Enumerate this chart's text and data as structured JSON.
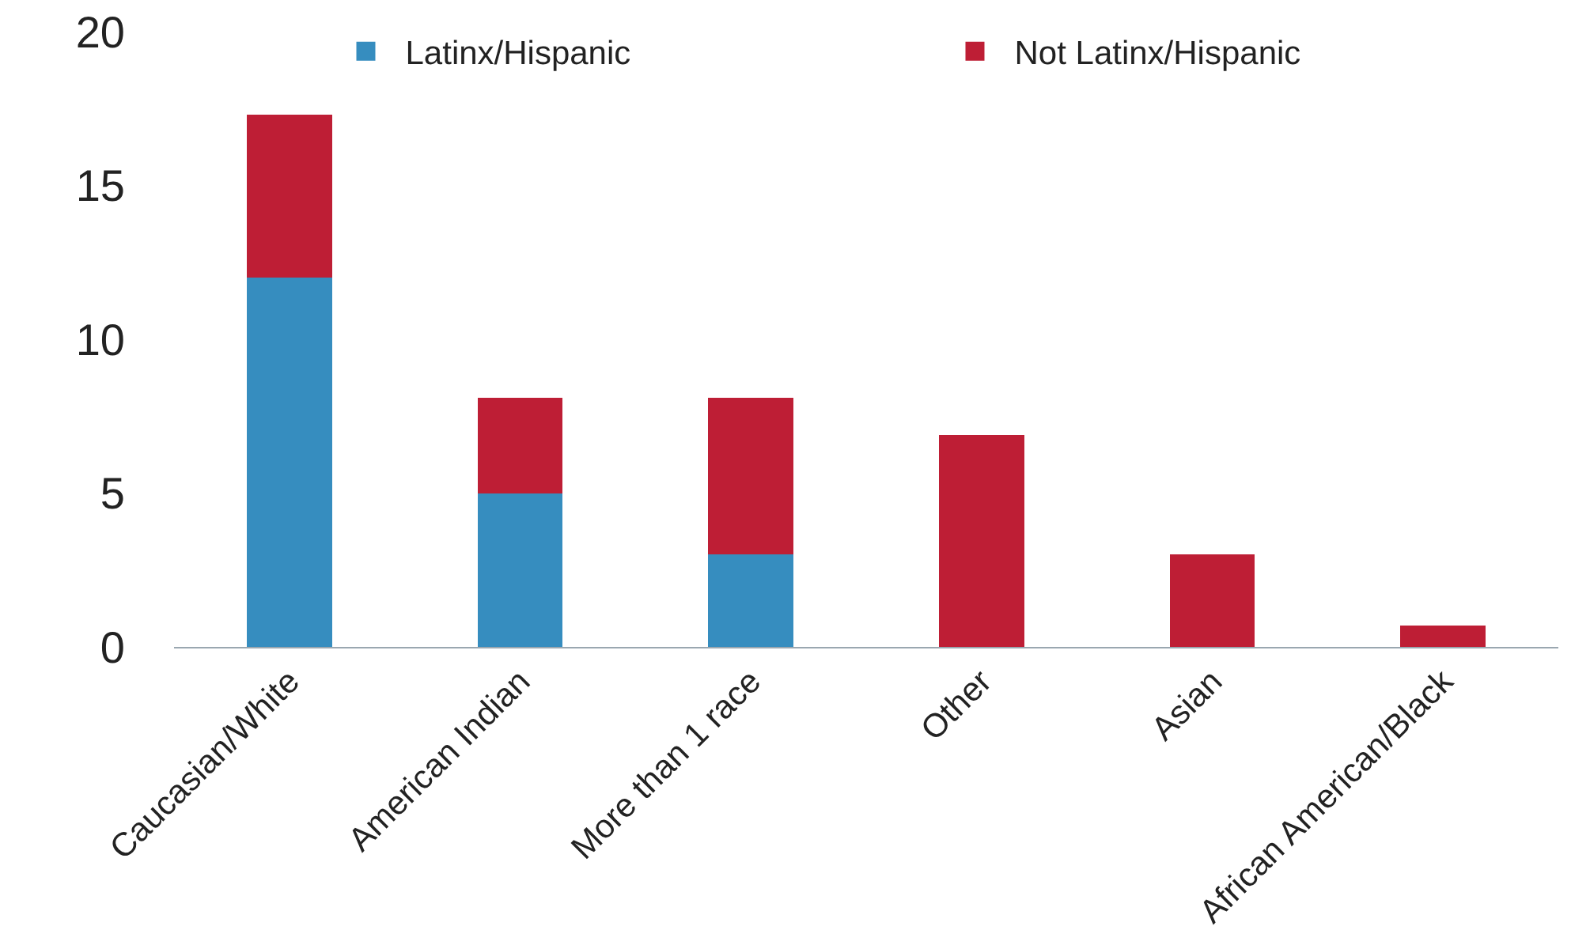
{
  "chart_data": {
    "type": "bar",
    "stacked": true,
    "categories": [
      "Caucasian/White",
      "American Indian",
      "More than 1 race",
      "Other",
      "Asian",
      "African American/Black"
    ],
    "series": [
      {
        "name": "Latinx/Hispanic",
        "color": "#368dbf",
        "values": [
          12,
          5,
          3,
          0,
          0,
          0
        ]
      },
      {
        "name": "Not Latinx/Hispanic",
        "color": "#be1e35",
        "values": [
          5.3,
          3.1,
          5.1,
          6.9,
          3,
          0.7
        ]
      }
    ],
    "ylim": [
      0,
      20
    ],
    "yticks": [
      0,
      5,
      10,
      15,
      20
    ],
    "grid": false,
    "legend": "top"
  }
}
